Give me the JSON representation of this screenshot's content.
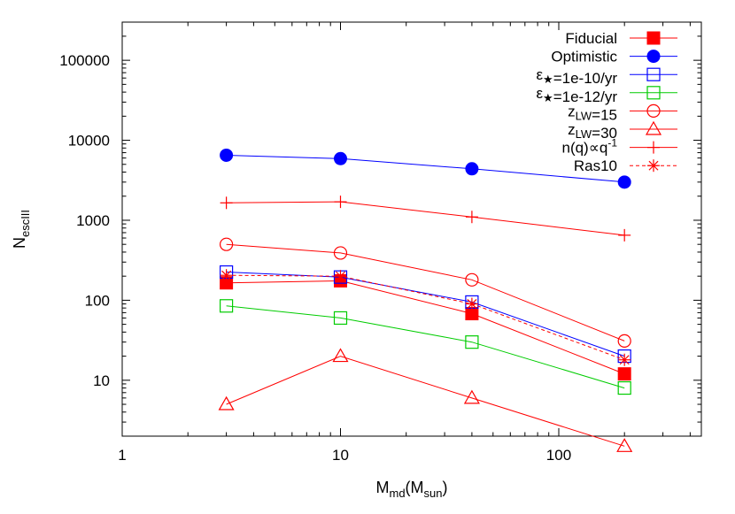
{
  "chart_data": {
    "type": "line",
    "x_scale": "log",
    "y_scale": "log",
    "xlim": [
      1,
      450
    ],
    "ylim": [
      2,
      300000
    ],
    "grid": false,
    "legend_placement": "top-right",
    "x_ticks": [
      1,
      10,
      100
    ],
    "x_tick_labels": [
      "1",
      "10",
      "100"
    ],
    "y_ticks": [
      10,
      100,
      1000,
      10000,
      100000
    ],
    "y_tick_labels": [
      "10",
      "100",
      "1000",
      "10000",
      "100000"
    ],
    "xlabel": {
      "main": "M",
      "sub1": "md",
      "mid": "(M",
      "sub2": "sun",
      "end": ")"
    },
    "ylabel": {
      "main": "N",
      "sub": "escIII"
    },
    "x": [
      3,
      10,
      40,
      200
    ],
    "series": [
      {
        "name": "Fiducial",
        "label_parts": [
          [
            "Fiducial",
            ""
          ]
        ],
        "color": "#ff0000",
        "marker": "filled-square",
        "dash": "solid",
        "values": [
          165,
          175,
          68,
          12
        ]
      },
      {
        "name": "Optimistic",
        "label_parts": [
          [
            "Optimistic",
            ""
          ]
        ],
        "color": "#0000ff",
        "marker": "filled-circle",
        "dash": "solid",
        "values": [
          6500,
          5900,
          4400,
          3000
        ]
      },
      {
        "name": "ε★=1e-10/yr",
        "label_parts": [
          [
            "ε",
            ""
          ],
          [
            "★",
            "sub"
          ],
          [
            "=1e-10/yr",
            ""
          ]
        ],
        "color": "#0000ff",
        "marker": "open-square",
        "dash": "solid",
        "values": [
          225,
          195,
          95,
          20
        ]
      },
      {
        "name": "ε★=1e-12/yr",
        "label_parts": [
          [
            "ε",
            ""
          ],
          [
            "★",
            "sub"
          ],
          [
            "=1e-12/yr",
            ""
          ]
        ],
        "color": "#00cc00",
        "marker": "open-square",
        "dash": "solid",
        "values": [
          85,
          60,
          30,
          8
        ]
      },
      {
        "name": "zLW=15",
        "label_parts": [
          [
            "z",
            ""
          ],
          [
            "LW",
            "sub"
          ],
          [
            "=15",
            ""
          ]
        ],
        "color": "#ff0000",
        "marker": "open-circle",
        "dash": "solid",
        "values": [
          500,
          390,
          180,
          31
        ]
      },
      {
        "name": "zLW=30",
        "label_parts": [
          [
            "z",
            ""
          ],
          [
            "LW",
            "sub"
          ],
          [
            "=30",
            ""
          ]
        ],
        "color": "#ff0000",
        "marker": "open-triangle",
        "dash": "solid",
        "values": [
          5,
          20,
          6,
          1.5
        ]
      },
      {
        "name": "n(q)∝q-1",
        "label_parts": [
          [
            "n(q)∝q",
            ""
          ],
          [
            "-1",
            "sup"
          ]
        ],
        "color": "#ff0000",
        "marker": "plus",
        "dash": "solid",
        "values": [
          1650,
          1700,
          1100,
          650
        ]
      },
      {
        "name": "Ras10",
        "label_parts": [
          [
            "Ras10",
            ""
          ]
        ],
        "color": "#ff0000",
        "marker": "star",
        "dash": "dashed",
        "values": [
          205,
          200,
          90,
          18
        ]
      }
    ]
  }
}
